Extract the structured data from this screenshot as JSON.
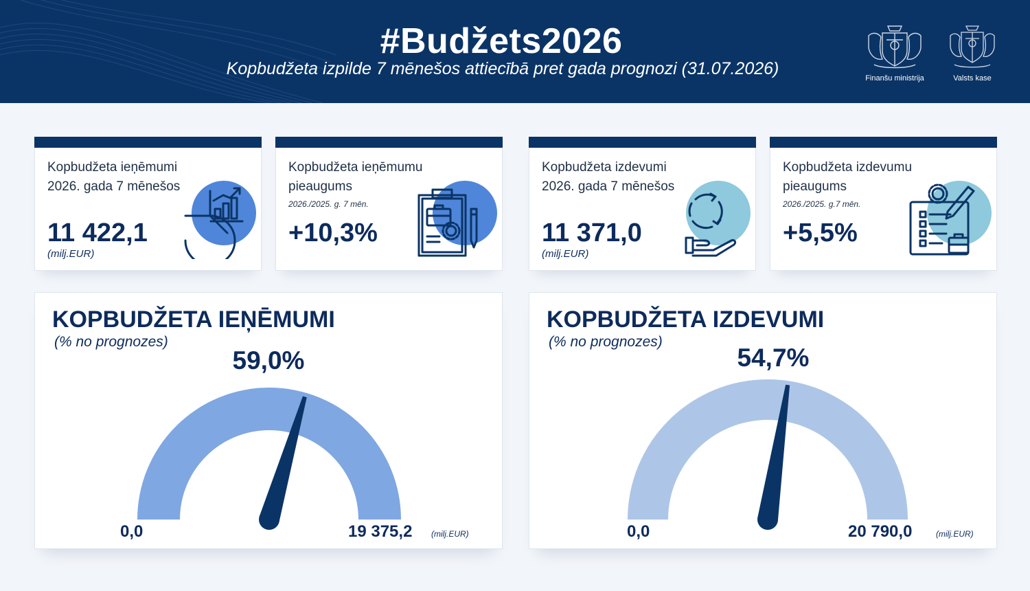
{
  "header": {
    "title": "#Budžets2026",
    "subtitle": "Kopbudžeta izpilde 7 mēnešos attiecībā pret gada prognozi (31.07.2026)",
    "logos": [
      {
        "label": "Finanšu ministrija",
        "icon": "coat-of-arms-icon"
      },
      {
        "label": "Valsts kase",
        "icon": "coat-of-arms-icon"
      }
    ]
  },
  "colors": {
    "navy": "#0b3466",
    "gauge_revenue": "#7fa7e2",
    "gauge_expense": "#adc6e7",
    "icon_blue": "#4f86d9",
    "icon_teal": "#8ec9dd"
  },
  "cards": [
    {
      "label_line1": "Kopbudžeta ieņēmumi",
      "label_line2": "2026. gada 7 mēnešos",
      "note": "",
      "value": "11 422,1",
      "unit": "(milj.EUR)",
      "icon": "pie-chart-growth-icon"
    },
    {
      "label_line1": "Kopbudžeta ieņēmumu",
      "label_line2": "pieaugums",
      "note": "2026./2025. g. 7 mēn.",
      "value": "+10,3%",
      "unit": "",
      "icon": "clipboard-briefcase-gear-icon"
    },
    {
      "label_line1": "Kopbudžeta izdevumi",
      "label_line2": "2026. gada 7 mēnešos",
      "note": "",
      "value": "11 371,0",
      "unit": "(milj.EUR)",
      "icon": "hand-cycle-icon"
    },
    {
      "label_line1": "Kopbudžeta izdevumu",
      "label_line2": "pieaugums",
      "note": "2026./2025. g.7 mēn.",
      "value": "+5,5%",
      "unit": "",
      "icon": "checklist-pencil-icon"
    }
  ],
  "chart_data": [
    {
      "type": "gauge",
      "title": "KOPBUDŽETA IEŅĒMUMI",
      "subtitle": "(% no prognozes)",
      "value_label": "59,0%",
      "value_fraction": 0.59,
      "min_label": "0,0",
      "max_label": "19 375,2",
      "unit": "(milj.EUR)",
      "min": 0,
      "max": 19375.2
    },
    {
      "type": "gauge",
      "title": "KOPBUDŽETA IZDEVUMI",
      "subtitle": "(% no prognozes)",
      "value_label": "54,7%",
      "value_fraction": 0.547,
      "min_label": "0,0",
      "max_label": "20 790,0",
      "unit": "(milj.EUR)",
      "min": 0,
      "max": 20790.0
    }
  ]
}
